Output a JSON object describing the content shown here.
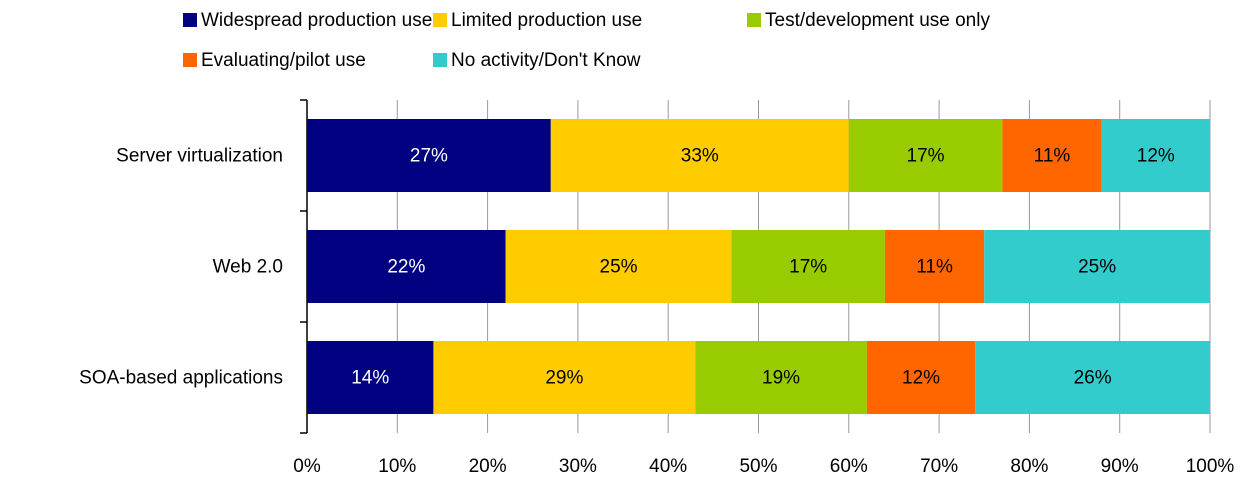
{
  "chart_data": {
    "type": "stacked_barh",
    "categories": [
      "Server virtualization",
      "Web 2.0",
      "SOA-based applications"
    ],
    "series": [
      {
        "name": "Widespread production use",
        "color": "#000080",
        "values": [
          27,
          22,
          14
        ],
        "value_labels": [
          "27%",
          "22%",
          "14%"
        ]
      },
      {
        "name": "Limited production use",
        "color": "#ffcc00",
        "values": [
          33,
          25,
          29
        ],
        "value_labels": [
          "33%",
          "25%",
          "29%"
        ]
      },
      {
        "name": "Test/development use only",
        "color": "#99cc00",
        "values": [
          17,
          17,
          19
        ],
        "value_labels": [
          "17%",
          "17%",
          "19%"
        ]
      },
      {
        "name": "Evaluating/pilot use",
        "color": "#ff6600",
        "values": [
          11,
          11,
          12
        ],
        "value_labels": [
          "11%",
          "11%",
          "12%"
        ]
      },
      {
        "name": "No activity/Don't Know",
        "color": "#33cccc",
        "values": [
          12,
          25,
          26
        ],
        "value_labels": [
          "12%",
          "25%",
          "26%"
        ]
      }
    ],
    "xlim": [
      0,
      100
    ],
    "xticks": [
      {
        "value": 0,
        "label": "0%"
      },
      {
        "value": 10,
        "label": "10%"
      },
      {
        "value": 20,
        "label": "20%"
      },
      {
        "value": 30,
        "label": "30%"
      },
      {
        "value": 40,
        "label": "40%"
      },
      {
        "value": 50,
        "label": "50%"
      },
      {
        "value": 60,
        "label": "60%"
      },
      {
        "value": 70,
        "label": "70%"
      },
      {
        "value": 80,
        "label": "80%"
      },
      {
        "value": 90,
        "label": "90%"
      },
      {
        "value": 100,
        "label": "100%"
      }
    ],
    "grid": true,
    "legend": "top"
  }
}
